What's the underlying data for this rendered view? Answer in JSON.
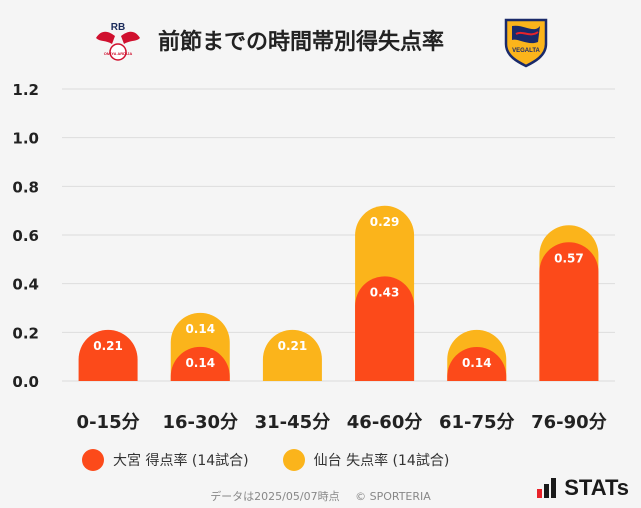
{
  "header": {
    "title": "前節までの時間帯別得失点率",
    "home_logo_text": "RB",
    "home_logo_sub": "OMIYA ARDIJA",
    "away_logo_text": "VEGALTA"
  },
  "chart_data": {
    "type": "bar",
    "stacked": true,
    "title": "前節までの時間帯別得失点率",
    "categories": [
      "0-15分",
      "16-30分",
      "31-45分",
      "46-60分",
      "61-75分",
      "76-90分"
    ],
    "series": [
      {
        "name": "大宮 得点率 (14試合)",
        "color": "#fc4a1a",
        "values": [
          0.21,
          0.14,
          0,
          0.43,
          0.14,
          0.57
        ]
      },
      {
        "name": "仙台 失点率 (14試合)",
        "color": "#fbb41b",
        "values": [
          0,
          0.14,
          0.21,
          0.29,
          0.07,
          0.07
        ]
      }
    ],
    "data_labels": [
      [
        "0.21",
        "0.14",
        "",
        "0.43",
        "0.14",
        "0.57"
      ],
      [
        "",
        "0.14",
        "0.21",
        "0.29",
        "",
        ""
      ]
    ],
    "yticks": [
      "0.0",
      "0.2",
      "0.4",
      "0.6",
      "0.8",
      "1.0",
      "1.2"
    ],
    "ylim": [
      0,
      1.2
    ],
    "grid": true,
    "legend": "bottom"
  },
  "legend": {
    "items": [
      {
        "label": "大宮 得点率 (14試合)",
        "color": "#fc4a1a"
      },
      {
        "label": "仙台 失点率 (14試合)",
        "color": "#fbb41b"
      }
    ]
  },
  "footer": {
    "date_text": "データは2025/05/07時点",
    "copyright": "© SPORTERIA"
  },
  "brand": {
    "stats_logo": "STATs"
  }
}
